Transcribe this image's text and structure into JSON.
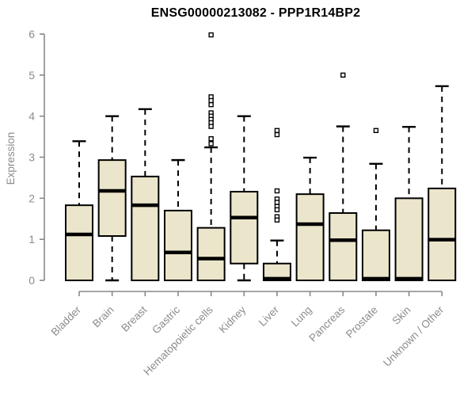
{
  "chart_data": {
    "type": "boxplot",
    "title": "ENSG00000213082 - PPP1R14BP2",
    "ylabel": "Expression",
    "xlabel": "",
    "ylim": [
      0,
      6
    ],
    "yticks": [
      0,
      1,
      2,
      3,
      4,
      5,
      6
    ],
    "grid": false,
    "legend": false,
    "colors": {
      "box_fill": "#EBE5CB",
      "box_stroke": "#000000",
      "median_color": "#000000",
      "whisker_color": "#000000",
      "outlier_stroke": "#000000",
      "outlier_fill": "#ffffff",
      "axis_color": "#888888",
      "tick_label_color": "#8c8c8c",
      "title_color": "#000000",
      "background": "#ffffff"
    },
    "categories": [
      "Bladder",
      "Brain",
      "Breast",
      "Gastric",
      "Hematopoietic cells",
      "Kidney",
      "Liver",
      "Lung",
      "Pancreas",
      "Prostate",
      "Skin",
      "Unknown / Other"
    ],
    "series": [
      {
        "label": "Bladder",
        "whisker_low": 0,
        "q1": 0,
        "median": 1.12,
        "q3": 1.83,
        "whisker_high": 3.39,
        "outliers": []
      },
      {
        "label": "Brain",
        "whisker_low": 0,
        "q1": 1.08,
        "median": 2.18,
        "q3": 2.93,
        "whisker_high": 4.0,
        "outliers": []
      },
      {
        "label": "Breast",
        "whisker_low": 0,
        "q1": 0,
        "median": 1.83,
        "q3": 2.53,
        "whisker_high": 4.17,
        "outliers": []
      },
      {
        "label": "Gastric",
        "whisker_low": 0,
        "q1": 0,
        "median": 0.68,
        "q3": 1.7,
        "whisker_high": 2.93,
        "outliers": []
      },
      {
        "label": "Hematopoietic cells",
        "whisker_low": 0,
        "q1": 0,
        "median": 0.53,
        "q3": 1.28,
        "whisker_high": 3.24,
        "outliers": [
          5.98,
          4.47,
          4.38,
          4.28,
          4.08,
          4.0,
          3.92,
          3.84,
          3.75,
          3.45,
          3.33
        ]
      },
      {
        "label": "Kidney",
        "whisker_low": 0,
        "q1": 0.41,
        "median": 1.53,
        "q3": 2.16,
        "whisker_high": 4.0,
        "outliers": []
      },
      {
        "label": "Liver",
        "whisker_low": 0,
        "q1": 0,
        "median": 0.04,
        "q3": 0.41,
        "whisker_high": 0.97,
        "outliers": [
          3.65,
          3.55,
          2.18,
          1.98,
          1.9,
          1.8,
          1.72,
          1.55,
          1.47
        ]
      },
      {
        "label": "Lung",
        "whisker_low": 0,
        "q1": 0,
        "median": 1.37,
        "q3": 2.1,
        "whisker_high": 2.99,
        "outliers": []
      },
      {
        "label": "Pancreas",
        "whisker_low": 0,
        "q1": 0,
        "median": 0.98,
        "q3": 1.64,
        "whisker_high": 3.75,
        "outliers": [
          5.0
        ]
      },
      {
        "label": "Prostate",
        "whisker_low": 0,
        "q1": 0,
        "median": 0.04,
        "q3": 1.22,
        "whisker_high": 2.84,
        "outliers": [
          3.65
        ]
      },
      {
        "label": "Skin",
        "whisker_low": 0,
        "q1": 0,
        "median": 0.04,
        "q3": 2.0,
        "whisker_high": 3.74,
        "outliers": []
      },
      {
        "label": "Unknown / Other",
        "whisker_low": 0,
        "q1": 0,
        "median": 0.99,
        "q3": 2.24,
        "whisker_high": 4.73,
        "outliers": []
      }
    ]
  }
}
